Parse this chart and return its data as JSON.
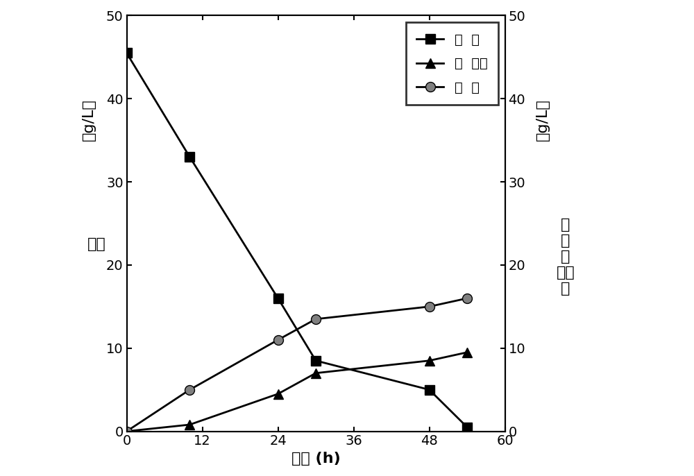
{
  "xylose_time": [
    0,
    10,
    24,
    30,
    48,
    54
  ],
  "xylose_values": [
    45.5,
    33.0,
    16.0,
    8.5,
    5.0,
    0.5
  ],
  "xylitol_time": [
    0,
    10,
    24,
    30,
    48,
    54
  ],
  "xylitol_values": [
    0,
    0.8,
    4.5,
    7.0,
    8.5,
    9.5
  ],
  "ethanol_time": [
    0,
    10,
    24,
    30,
    48,
    54
  ],
  "ethanol_values": [
    0,
    5.0,
    11.0,
    13.5,
    15.0,
    16.0
  ],
  "xlim": [
    0,
    60
  ],
  "ylim_left": [
    0,
    50
  ],
  "ylim_right": [
    0,
    50
  ],
  "xticks": [
    0,
    12,
    24,
    36,
    48,
    60
  ],
  "yticks_left": [
    0,
    10,
    20,
    30,
    40,
    50
  ],
  "yticks_right": [
    0,
    10,
    20,
    30,
    40,
    50
  ],
  "xlabel": "时间 (h)",
  "ylabel_left_line1": "（g/L）",
  "ylabel_left_line2": "木糖",
  "ylabel_right_unit": "（g/L）",
  "ylabel_right_text": "木\n糖\n醇\n和乙\n醇",
  "legend_xylose": "木  糖",
  "legend_xylitol": "木  糖醇",
  "legend_ethanol": "乙  醇",
  "line_color": "black",
  "marker_xylose": "s",
  "marker_xylitol": "^",
  "marker_ethanol": "o",
  "marker_size": 10,
  "linewidth": 2.0,
  "background_color": "#ffffff",
  "legend_loc": "upper right",
  "fontsize_label": 16,
  "fontsize_tick": 14,
  "fontsize_legend": 14
}
